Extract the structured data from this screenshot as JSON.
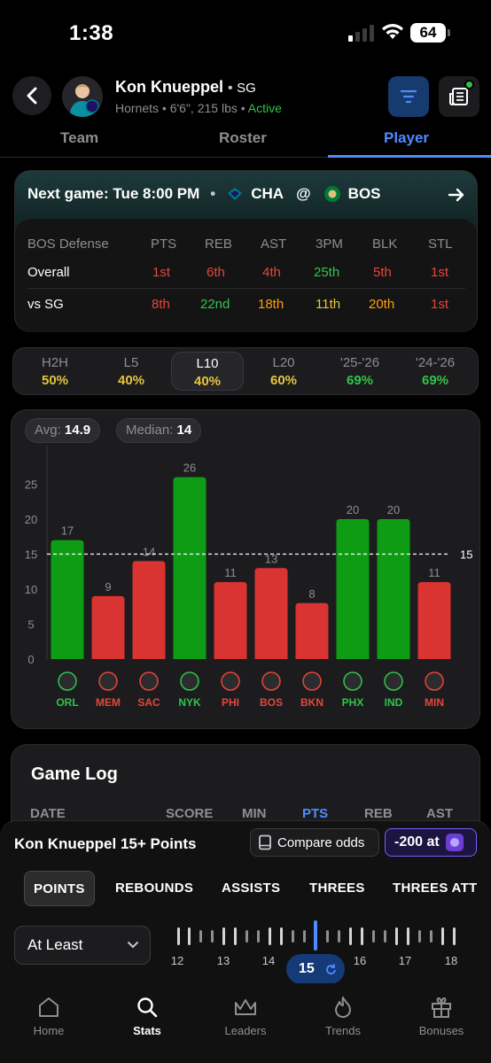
{
  "status_bar": {
    "time": "1:38",
    "battery": "64"
  },
  "player": {
    "name": "Kon Knueppel",
    "position": "SG",
    "team": "Hornets",
    "size": "6'6\", 215 lbs",
    "status": "Active"
  },
  "tabs": [
    "Team",
    "Roster",
    "Player"
  ],
  "next_game": {
    "label": "Next game: Tue 8:00 PM",
    "away": "CHA",
    "at": "@",
    "home": "BOS"
  },
  "defense": {
    "title": "BOS Defense",
    "cols": [
      "PTS",
      "REB",
      "AST",
      "3PM",
      "BLK",
      "STL"
    ],
    "rows": [
      {
        "label": "Overall",
        "values": [
          "1st",
          "6th",
          "4th",
          "25th",
          "5th",
          "1st"
        ]
      },
      {
        "label": "vs SG",
        "values": [
          "8th",
          "22nd",
          "18th",
          "11th",
          "20th",
          "1st"
        ]
      }
    ]
  },
  "splits": [
    {
      "label": "H2H",
      "pct": "50%"
    },
    {
      "label": "L5",
      "pct": "40%"
    },
    {
      "label": "L10",
      "pct": "40%"
    },
    {
      "label": "L20",
      "pct": "60%"
    },
    {
      "label": "'25-'26",
      "pct": "69%"
    },
    {
      "label": "'24-'26",
      "pct": "69%"
    }
  ],
  "summary": {
    "avg_label": "Avg:",
    "avg": "14.9",
    "median_label": "Median:",
    "median": "14"
  },
  "chart_data": {
    "type": "bar",
    "categories": [
      "ORL",
      "MEM",
      "SAC",
      "NYK",
      "PHI",
      "BOS",
      "BKN",
      "PHX",
      "IND",
      "MIN"
    ],
    "values": [
      17,
      9,
      14,
      26,
      11,
      13,
      8,
      20,
      20,
      11
    ],
    "line_value": 15,
    "yticks": [
      0,
      5,
      10,
      15,
      20,
      25
    ],
    "ylim": [
      0,
      26
    ],
    "colors": {
      "over": "#0d9c14",
      "under": "#d93332"
    },
    "label_colors": {
      "over": "#31c44a",
      "under": "#e8443a"
    }
  },
  "game_log": {
    "title": "Game Log",
    "headers": [
      "DATE",
      "SCORE",
      "MIN",
      "PTS",
      "REB",
      "AST"
    ]
  },
  "prop": {
    "title": "Kon Knueppel 15+ Points",
    "compare": "Compare odds",
    "odds": "-200 at"
  },
  "stat_tabs": [
    "POINTS",
    "REBOUNDS",
    "ASSISTS",
    "THREES",
    "THREES ATT"
  ],
  "dropdown": {
    "value": "At Least"
  },
  "slider": {
    "labels": [
      "12",
      "13",
      "14",
      "15",
      "16",
      "17",
      "18"
    ],
    "selected": "15"
  },
  "nav": [
    "Home",
    "Stats",
    "Leaders",
    "Trends",
    "Bonuses"
  ]
}
